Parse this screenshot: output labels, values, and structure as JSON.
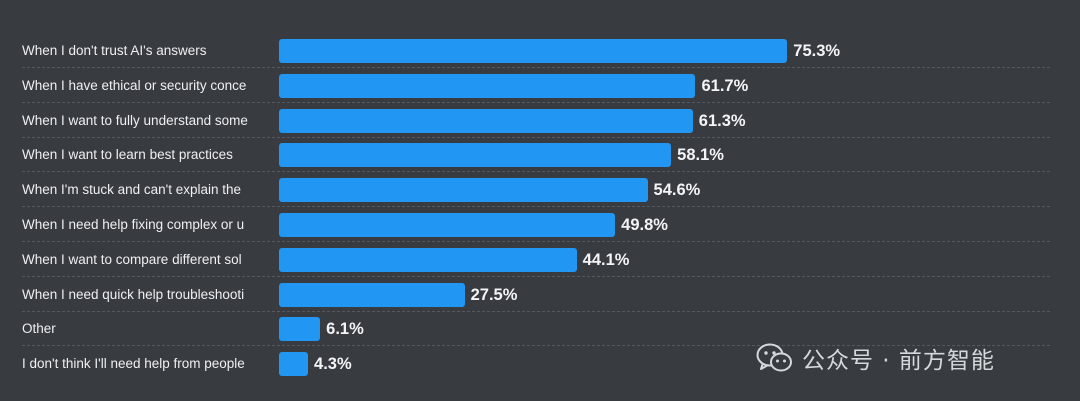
{
  "chart_data": {
    "type": "bar",
    "orientation": "horizontal",
    "categories": [
      "When I don't trust AI's answers",
      "When I have ethical or security conce",
      "When I want to fully understand some",
      "When I want to learn best practices",
      "When I'm stuck and can't explain the",
      "When I need help fixing complex or u",
      "When I want to compare different sol",
      "When I need quick help troubleshooti",
      "Other",
      "I don't think I'll need help from people"
    ],
    "values": [
      75.3,
      61.7,
      61.3,
      58.1,
      54.6,
      49.8,
      44.1,
      27.5,
      6.1,
      4.3
    ],
    "value_labels": [
      "75.3%",
      "61.7%",
      "61.3%",
      "58.1%",
      "54.6%",
      "49.8%",
      "44.1%",
      "27.5%",
      "6.1%",
      "4.3%"
    ],
    "unit": "%",
    "xlim": [
      0,
      100
    ],
    "grid": false,
    "bar_color": "#2196f3",
    "background_color": "#383b40"
  },
  "watermark": {
    "text": "公众号 · 前方智能",
    "icon": "wechat-icon"
  }
}
